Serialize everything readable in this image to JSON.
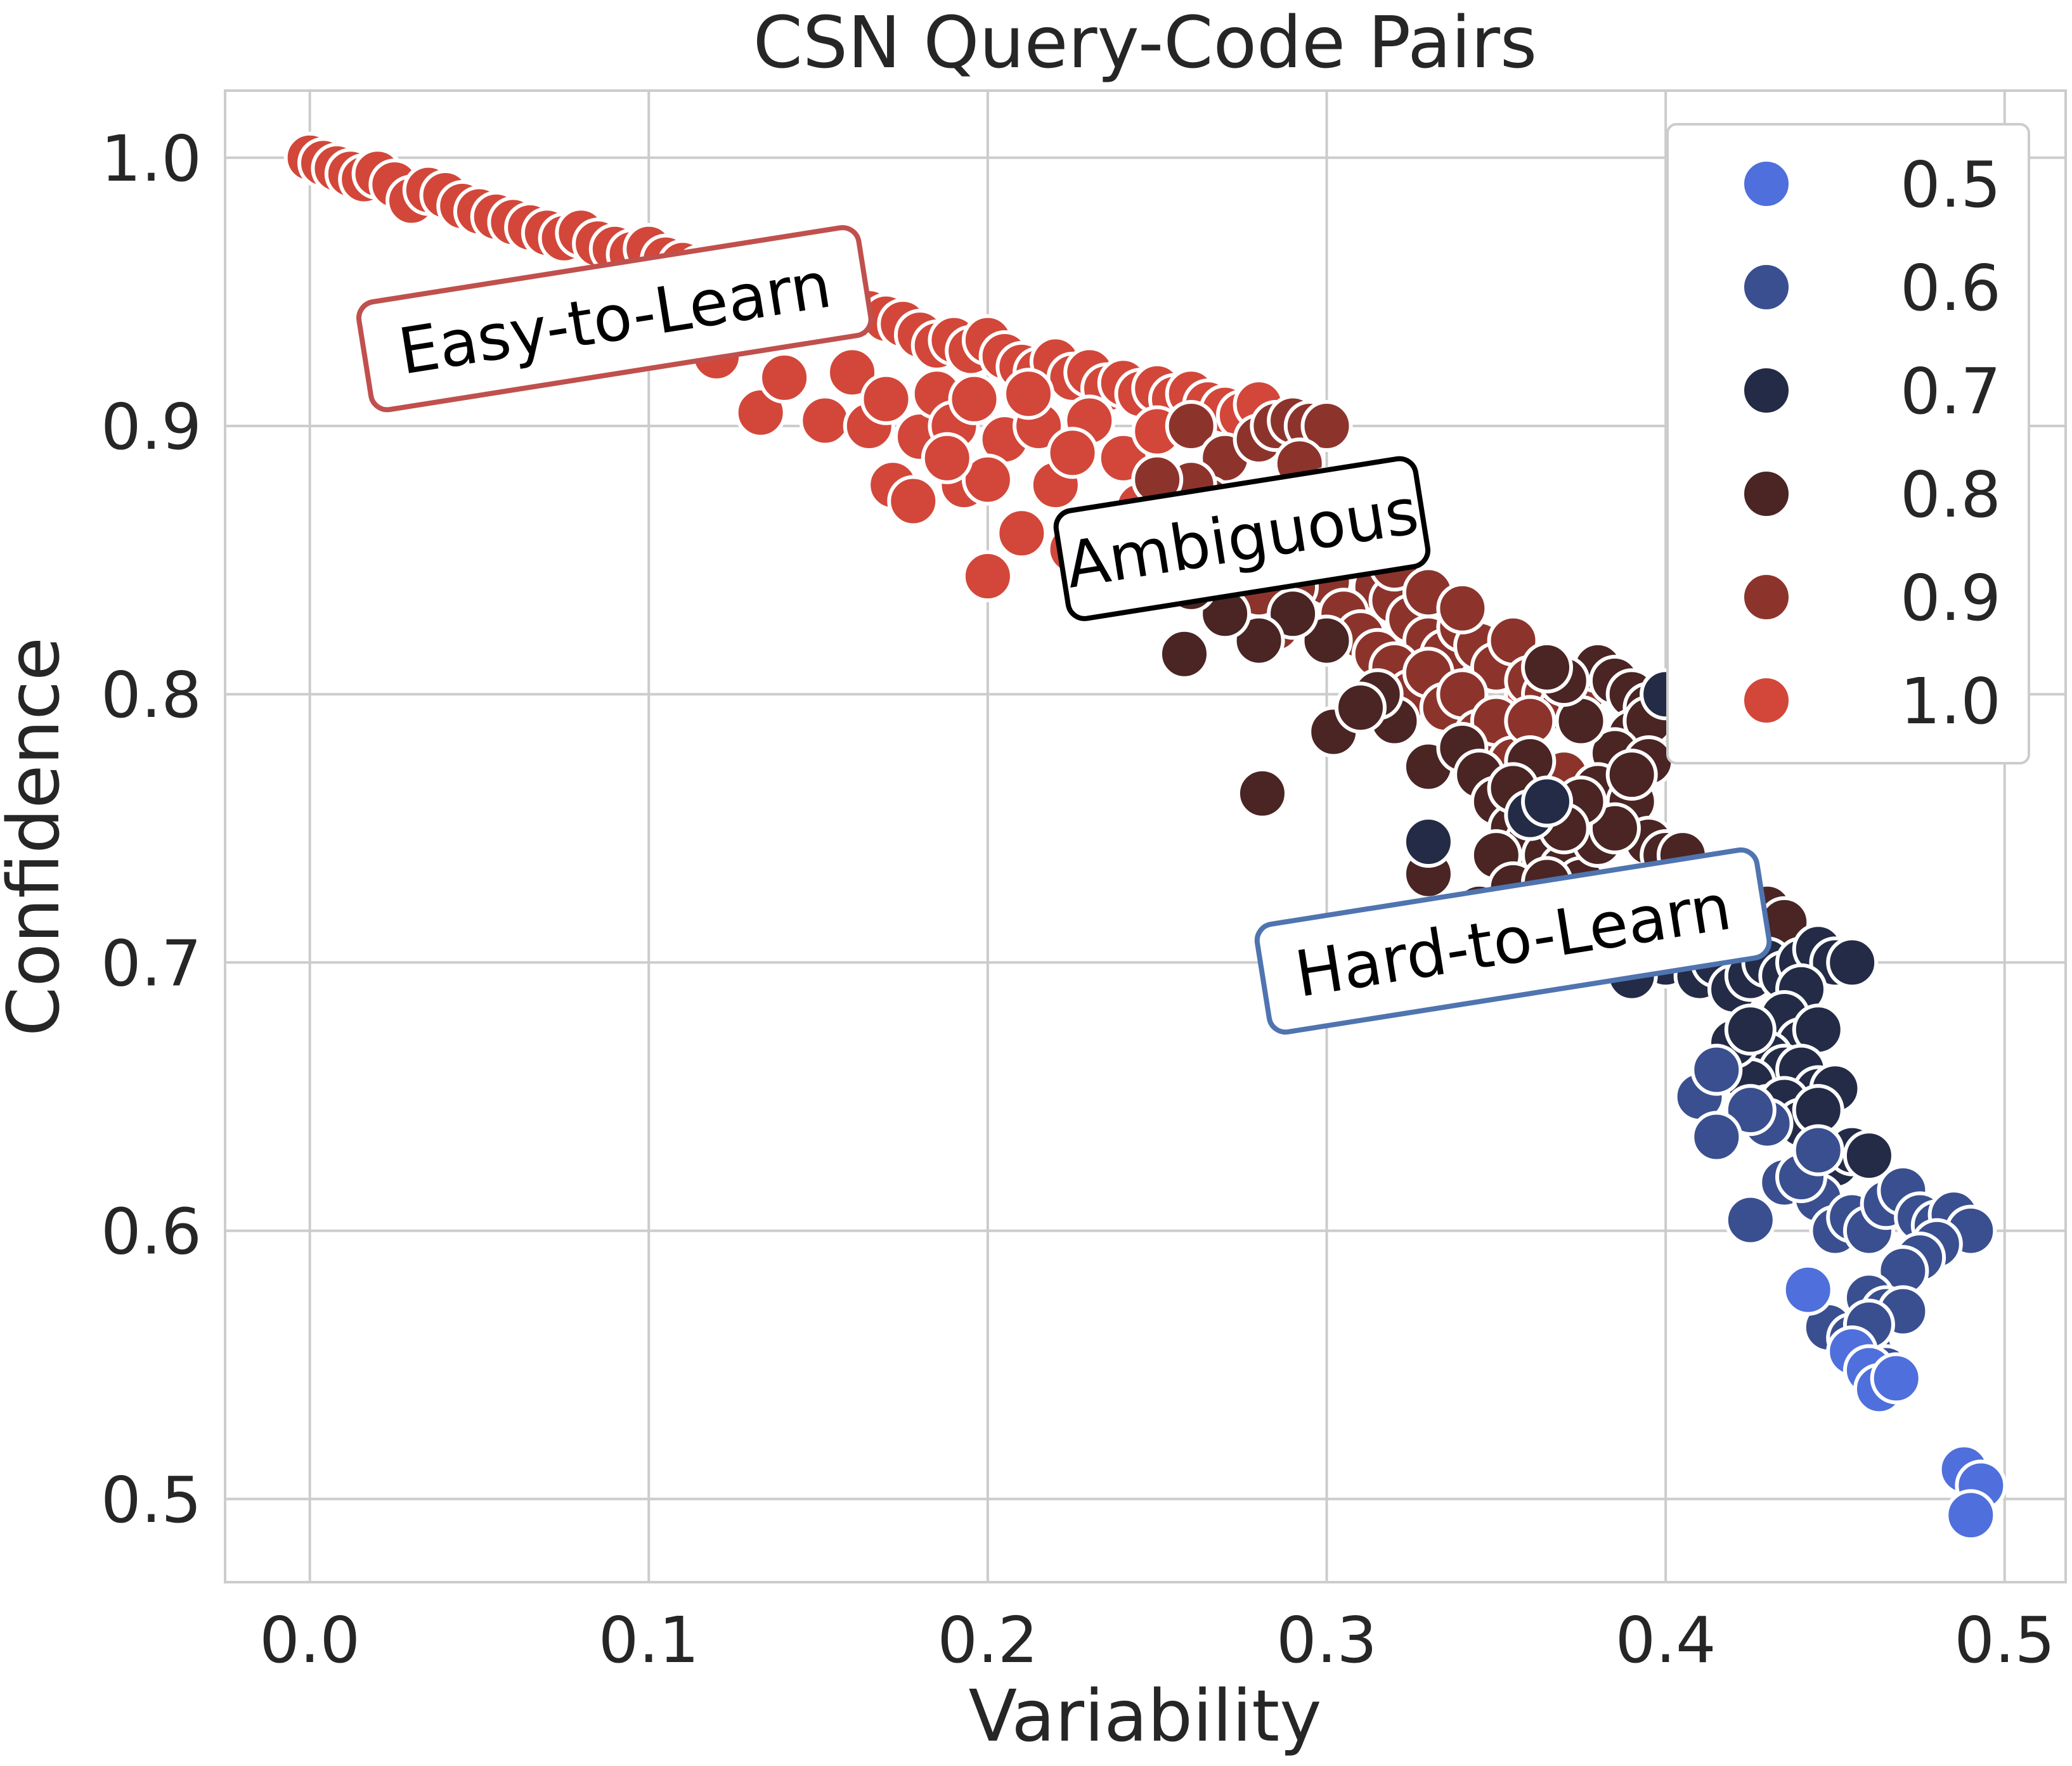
{
  "chart_data": {
    "type": "scatter",
    "title": "CSN Query-Code Pairs",
    "xlabel": "Variability",
    "ylabel": "Confidence",
    "xlim": [
      -0.025,
      0.518
    ],
    "ylim": [
      0.469,
      1.025
    ],
    "x_ticks": [
      0.0,
      0.1,
      0.2,
      0.3,
      0.4,
      0.5
    ],
    "x_tick_labels": [
      "0.0",
      "0.1",
      "0.2",
      "0.3",
      "0.4",
      "0.5"
    ],
    "y_ticks": [
      0.5,
      0.6,
      0.7,
      0.8,
      0.9,
      1.0
    ],
    "y_tick_labels": [
      "0.5",
      "0.6",
      "0.7",
      "0.8",
      "0.9",
      "1.0"
    ],
    "grid": true,
    "legend_position": "top-right",
    "hue_levels": [
      "0.5",
      "0.6",
      "0.7",
      "0.8",
      "0.9",
      "1.0"
    ],
    "hue_colors": {
      "0.5": "#4f6fdc",
      "0.6": "#3a4f8f",
      "0.7": "#232b46",
      "0.8": "#4a2523",
      "0.9": "#8c342c",
      "1.0": "#d2473a"
    },
    "annotations": [
      {
        "text": "Easy-to-Learn",
        "x": 0.09,
        "y": 0.94,
        "rotation": -9,
        "edge_color": "#c0504d"
      },
      {
        "text": "Ambiguous",
        "x": 0.275,
        "y": 0.858,
        "rotation": -9,
        "edge_color": "#000000"
      },
      {
        "text": "Hard-to-Learn",
        "x": 0.355,
        "y": 0.708,
        "rotation": -9,
        "edge_color": "#4f74b0"
      }
    ],
    "series": [
      {
        "name": "1.0",
        "color": "#d2473a",
        "points": [
          [
            0.0,
            1.0
          ],
          [
            0.004,
            0.998
          ],
          [
            0.008,
            0.996
          ],
          [
            0.012,
            0.994
          ],
          [
            0.016,
            0.992
          ],
          [
            0.02,
            0.994
          ],
          [
            0.025,
            0.99
          ],
          [
            0.03,
            0.984
          ],
          [
            0.035,
            0.988
          ],
          [
            0.04,
            0.986
          ],
          [
            0.045,
            0.982
          ],
          [
            0.05,
            0.98
          ],
          [
            0.055,
            0.978
          ],
          [
            0.06,
            0.976
          ],
          [
            0.065,
            0.974
          ],
          [
            0.07,
            0.972
          ],
          [
            0.075,
            0.97
          ],
          [
            0.08,
            0.972
          ],
          [
            0.085,
            0.968
          ],
          [
            0.09,
            0.966
          ],
          [
            0.095,
            0.964
          ],
          [
            0.1,
            0.966
          ],
          [
            0.105,
            0.962
          ],
          [
            0.11,
            0.96
          ],
          [
            0.115,
            0.958
          ],
          [
            0.12,
            0.956
          ],
          [
            0.125,
            0.954
          ],
          [
            0.13,
            0.956
          ],
          [
            0.135,
            0.952
          ],
          [
            0.14,
            0.95
          ],
          [
            0.145,
            0.948
          ],
          [
            0.15,
            0.95
          ],
          [
            0.155,
            0.946
          ],
          [
            0.16,
            0.944
          ],
          [
            0.165,
            0.942
          ],
          [
            0.17,
            0.94
          ],
          [
            0.175,
            0.938
          ],
          [
            0.18,
            0.934
          ],
          [
            0.185,
            0.93
          ],
          [
            0.19,
            0.932
          ],
          [
            0.195,
            0.928
          ],
          [
            0.2,
            0.932
          ],
          [
            0.205,
            0.926
          ],
          [
            0.21,
            0.922
          ],
          [
            0.215,
            0.92
          ],
          [
            0.22,
            0.924
          ],
          [
            0.225,
            0.918
          ],
          [
            0.23,
            0.92
          ],
          [
            0.235,
            0.914
          ],
          [
            0.24,
            0.916
          ],
          [
            0.245,
            0.912
          ],
          [
            0.25,
            0.914
          ],
          [
            0.255,
            0.91
          ],
          [
            0.26,
            0.912
          ],
          [
            0.265,
            0.908
          ],
          [
            0.27,
            0.906
          ],
          [
            0.275,
            0.904
          ],
          [
            0.28,
            0.908
          ],
          [
            0.105,
            0.932
          ],
          [
            0.12,
            0.926
          ],
          [
            0.133,
            0.905
          ],
          [
            0.14,
            0.918
          ],
          [
            0.152,
            0.902
          ],
          [
            0.16,
            0.92
          ],
          [
            0.165,
            0.9
          ],
          [
            0.17,
            0.91
          ],
          [
            0.172,
            0.878
          ],
          [
            0.178,
            0.872
          ],
          [
            0.18,
            0.896
          ],
          [
            0.185,
            0.912
          ],
          [
            0.19,
            0.9
          ],
          [
            0.193,
            0.878
          ],
          [
            0.196,
            0.91
          ],
          [
            0.2,
            0.844
          ],
          [
            0.205,
            0.895
          ],
          [
            0.21,
            0.86
          ],
          [
            0.215,
            0.9
          ],
          [
            0.22,
            0.878
          ],
          [
            0.225,
            0.854
          ],
          [
            0.23,
            0.902
          ],
          [
            0.235,
            0.842
          ],
          [
            0.24,
            0.888
          ],
          [
            0.245,
            0.87
          ],
          [
            0.25,
            0.898
          ],
          [
            0.225,
            0.89
          ],
          [
            0.212,
            0.912
          ],
          [
            0.2,
            0.88
          ],
          [
            0.188,
            0.888
          ],
          [
            0.345,
            0.79
          ],
          [
            0.35,
            0.782
          ],
          [
            0.375,
            0.755
          ],
          [
            0.36,
            0.8
          ]
        ]
      },
      {
        "name": "0.9",
        "color": "#8c342c",
        "points": [
          [
            0.26,
            0.9
          ],
          [
            0.27,
            0.888
          ],
          [
            0.28,
            0.895
          ],
          [
            0.285,
            0.9
          ],
          [
            0.29,
            0.902
          ],
          [
            0.295,
            0.9
          ],
          [
            0.3,
            0.9
          ],
          [
            0.292,
            0.886
          ],
          [
            0.3,
            0.875
          ],
          [
            0.305,
            0.862
          ],
          [
            0.31,
            0.85
          ],
          [
            0.315,
            0.84
          ],
          [
            0.32,
            0.835
          ],
          [
            0.325,
            0.828
          ],
          [
            0.33,
            0.82
          ],
          [
            0.335,
            0.815
          ],
          [
            0.34,
            0.825
          ],
          [
            0.345,
            0.818
          ],
          [
            0.35,
            0.81
          ],
          [
            0.355,
            0.82
          ],
          [
            0.36,
            0.805
          ],
          [
            0.365,
            0.8
          ],
          [
            0.37,
            0.795
          ],
          [
            0.375,
            0.8
          ],
          [
            0.3,
            0.842
          ],
          [
            0.305,
            0.83
          ],
          [
            0.31,
            0.822
          ],
          [
            0.315,
            0.815
          ],
          [
            0.32,
            0.81
          ],
          [
            0.325,
            0.8
          ],
          [
            0.33,
            0.808
          ],
          [
            0.335,
            0.795
          ],
          [
            0.34,
            0.8
          ],
          [
            0.345,
            0.785
          ],
          [
            0.35,
            0.79
          ],
          [
            0.355,
            0.775
          ],
          [
            0.29,
            0.84
          ],
          [
            0.285,
            0.825
          ],
          [
            0.28,
            0.838
          ],
          [
            0.275,
            0.848
          ],
          [
            0.27,
            0.86
          ],
          [
            0.265,
            0.872
          ],
          [
            0.26,
            0.878
          ],
          [
            0.255,
            0.865
          ],
          [
            0.25,
            0.855
          ],
          [
            0.245,
            0.845
          ],
          [
            0.24,
            0.86
          ],
          [
            0.25,
            0.88
          ],
          [
            0.31,
            0.86
          ],
          [
            0.32,
            0.848
          ],
          [
            0.33,
            0.838
          ],
          [
            0.34,
            0.832
          ],
          [
            0.36,
            0.79
          ],
          [
            0.37,
            0.77
          ]
        ]
      },
      {
        "name": "0.8",
        "color": "#4a2523",
        "points": [
          [
            0.258,
            0.815
          ],
          [
            0.281,
            0.763
          ],
          [
            0.302,
            0.786
          ],
          [
            0.33,
            0.773
          ],
          [
            0.34,
            0.78
          ],
          [
            0.345,
            0.77
          ],
          [
            0.35,
            0.76
          ],
          [
            0.355,
            0.75
          ],
          [
            0.36,
            0.745
          ],
          [
            0.365,
            0.74
          ],
          [
            0.37,
            0.735
          ],
          [
            0.375,
            0.73
          ],
          [
            0.38,
            0.72
          ],
          [
            0.385,
            0.715
          ],
          [
            0.39,
            0.71
          ],
          [
            0.395,
            0.705
          ],
          [
            0.4,
            0.715
          ],
          [
            0.405,
            0.72
          ],
          [
            0.41,
            0.73
          ],
          [
            0.415,
            0.725
          ],
          [
            0.42,
            0.72
          ],
          [
            0.425,
            0.715
          ],
          [
            0.43,
            0.72
          ],
          [
            0.435,
            0.715
          ],
          [
            0.38,
            0.81
          ],
          [
            0.385,
            0.805
          ],
          [
            0.39,
            0.8
          ],
          [
            0.395,
            0.795
          ],
          [
            0.4,
            0.8
          ],
          [
            0.39,
            0.785
          ],
          [
            0.395,
            0.79
          ],
          [
            0.385,
            0.778
          ],
          [
            0.38,
            0.765
          ],
          [
            0.375,
            0.79
          ],
          [
            0.37,
            0.805
          ],
          [
            0.365,
            0.81
          ],
          [
            0.36,
            0.775
          ],
          [
            0.355,
            0.765
          ],
          [
            0.35,
            0.74
          ],
          [
            0.345,
            0.72
          ],
          [
            0.355,
            0.728
          ],
          [
            0.365,
            0.73
          ],
          [
            0.37,
            0.71
          ],
          [
            0.38,
            0.745
          ],
          [
            0.39,
            0.76
          ],
          [
            0.395,
            0.745
          ],
          [
            0.4,
            0.74
          ],
          [
            0.405,
            0.74
          ],
          [
            0.33,
            0.733
          ],
          [
            0.32,
            0.79
          ],
          [
            0.315,
            0.8
          ],
          [
            0.31,
            0.795
          ],
          [
            0.3,
            0.82
          ],
          [
            0.29,
            0.83
          ],
          [
            0.28,
            0.82
          ],
          [
            0.27,
            0.83
          ],
          [
            0.26,
            0.84
          ],
          [
            0.395,
            0.775
          ],
          [
            0.39,
            0.77
          ],
          [
            0.385,
            0.75
          ],
          [
            0.375,
            0.76
          ],
          [
            0.37,
            0.75
          ],
          [
            0.41,
            0.725
          ],
          [
            0.415,
            0.715
          ],
          [
            0.42,
            0.705
          ]
        ]
      },
      {
        "name": "0.7",
        "color": "#232b46",
        "points": [
          [
            0.33,
            0.745
          ],
          [
            0.4,
            0.8
          ],
          [
            0.4,
            0.7
          ],
          [
            0.405,
            0.705
          ],
          [
            0.41,
            0.695
          ],
          [
            0.415,
            0.7
          ],
          [
            0.42,
            0.69
          ],
          [
            0.425,
            0.695
          ],
          [
            0.43,
            0.7
          ],
          [
            0.435,
            0.695
          ],
          [
            0.44,
            0.7
          ],
          [
            0.445,
            0.705
          ],
          [
            0.45,
            0.7
          ],
          [
            0.455,
            0.7
          ],
          [
            0.44,
            0.69
          ],
          [
            0.435,
            0.68
          ],
          [
            0.44,
            0.67
          ],
          [
            0.445,
            0.675
          ],
          [
            0.43,
            0.665
          ],
          [
            0.435,
            0.66
          ],
          [
            0.44,
            0.66
          ],
          [
            0.445,
            0.652
          ],
          [
            0.45,
            0.653
          ],
          [
            0.425,
            0.655
          ],
          [
            0.43,
            0.645
          ],
          [
            0.435,
            0.648
          ],
          [
            0.44,
            0.64
          ],
          [
            0.445,
            0.645
          ],
          [
            0.42,
            0.67
          ],
          [
            0.425,
            0.675
          ],
          [
            0.45,
            0.625
          ],
          [
            0.455,
            0.63
          ],
          [
            0.46,
            0.628
          ],
          [
            0.36,
            0.755
          ],
          [
            0.365,
            0.76
          ],
          [
            0.37,
            0.72
          ],
          [
            0.375,
            0.715
          ],
          [
            0.38,
            0.705
          ],
          [
            0.385,
            0.7
          ],
          [
            0.39,
            0.695
          ]
        ]
      },
      {
        "name": "0.6",
        "color": "#3a4f8f",
        "points": [
          [
            0.41,
            0.65
          ],
          [
            0.415,
            0.66
          ],
          [
            0.425,
            0.604
          ],
          [
            0.435,
            0.618
          ],
          [
            0.445,
            0.612
          ],
          [
            0.45,
            0.6
          ],
          [
            0.455,
            0.605
          ],
          [
            0.46,
            0.6
          ],
          [
            0.465,
            0.61
          ],
          [
            0.47,
            0.615
          ],
          [
            0.475,
            0.605
          ],
          [
            0.48,
            0.602
          ],
          [
            0.485,
            0.606
          ],
          [
            0.49,
            0.6
          ],
          [
            0.48,
            0.595
          ],
          [
            0.475,
            0.59
          ],
          [
            0.47,
            0.585
          ],
          [
            0.46,
            0.575
          ],
          [
            0.465,
            0.57
          ],
          [
            0.47,
            0.57
          ],
          [
            0.448,
            0.564
          ],
          [
            0.455,
            0.56
          ],
          [
            0.46,
            0.555
          ],
          [
            0.465,
            0.548
          ],
          [
            0.46,
            0.565
          ],
          [
            0.44,
            0.62
          ],
          [
            0.445,
            0.63
          ],
          [
            0.43,
            0.64
          ],
          [
            0.425,
            0.645
          ],
          [
            0.415,
            0.635
          ],
          [
            0.365,
            0.72
          ]
        ]
      },
      {
        "name": "0.5",
        "color": "#4f6fdc",
        "points": [
          [
            0.442,
            0.578
          ],
          [
            0.455,
            0.555
          ],
          [
            0.46,
            0.548
          ],
          [
            0.463,
            0.541
          ],
          [
            0.488,
            0.511
          ],
          [
            0.493,
            0.505
          ],
          [
            0.49,
            0.494
          ],
          [
            0.468,
            0.545
          ]
        ]
      }
    ]
  }
}
